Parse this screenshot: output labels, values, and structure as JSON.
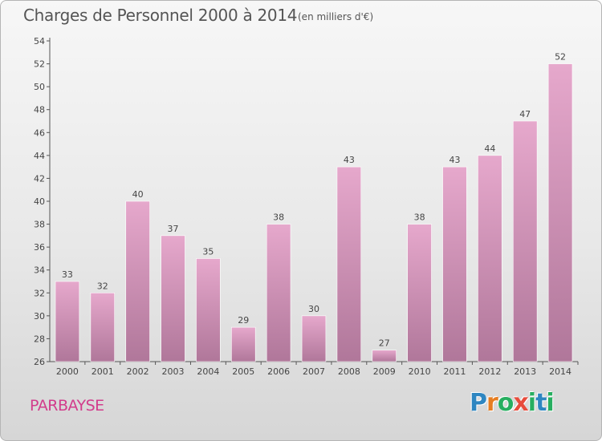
{
  "chart_data": {
    "type": "bar",
    "title": "Charges de Personnel 2000 à 2014",
    "subtitle": "(en milliers d'€)",
    "categories": [
      "2000",
      "2001",
      "2002",
      "2003",
      "2004",
      "2005",
      "2006",
      "2007",
      "2008",
      "2009",
      "2010",
      "2011",
      "2012",
      "2013",
      "2014"
    ],
    "values": [
      33,
      32,
      40,
      37,
      35,
      29,
      38,
      30,
      43,
      27,
      38,
      43,
      44,
      47,
      52
    ],
    "ylim": [
      26,
      54
    ],
    "yticks": [
      26,
      28,
      30,
      32,
      34,
      36,
      38,
      40,
      42,
      44,
      46,
      48,
      50,
      52,
      54
    ],
    "grid": false,
    "bar_color_top": "#e6a8cc",
    "bar_color_bottom": "#b0779a"
  },
  "commune": "PARBAYSE",
  "logo": {
    "letters": [
      "P",
      "r",
      "o",
      "x",
      "i",
      "t",
      "i"
    ],
    "colors": [
      "#2e86c1",
      "#e67e22",
      "#27ae60",
      "#e74c3c",
      "#27ae60",
      "#2e86c1",
      "#27ae60"
    ]
  }
}
